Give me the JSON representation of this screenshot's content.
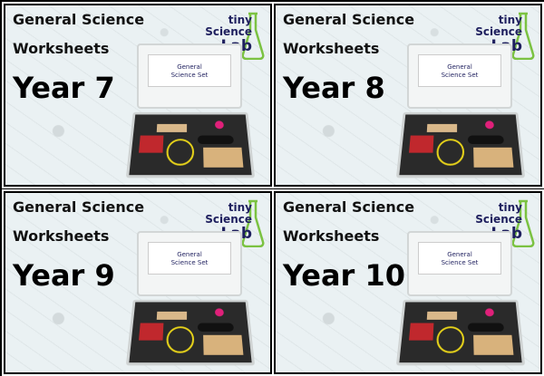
{
  "panels": [
    {
      "line1": "General Science",
      "line2": "Worksheets",
      "year": "Year 7"
    },
    {
      "line1": "General Science",
      "line2": "Worksheets",
      "year": "Year 8"
    },
    {
      "line1": "General Science",
      "line2": "Worksheets",
      "year": "Year 9"
    },
    {
      "line1": "General Science",
      "line2": "Worksheets",
      "year": "Year 10"
    }
  ],
  "logo": {
    "tiny": "tiny",
    "science": "Science",
    "lab": "Lab"
  },
  "kit_card": {
    "line1": "General",
    "line2": "Science Set"
  },
  "colors": {
    "navy": "#1e1f5e",
    "green": "#7bc242",
    "yellow": "#f2c400"
  }
}
